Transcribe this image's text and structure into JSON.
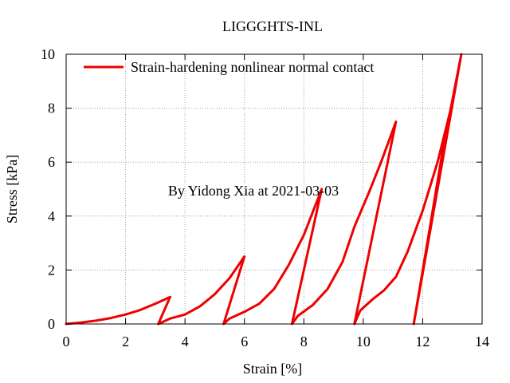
{
  "chart_data": {
    "type": "line",
    "title": "LIGGGHTS-INL",
    "xlabel": "Strain [%]",
    "ylabel": "Stress [kPa]",
    "xlim": [
      0,
      14
    ],
    "ylim": [
      0,
      10
    ],
    "xticks": [
      0,
      2,
      4,
      6,
      8,
      10,
      12,
      14
    ],
    "yticks": [
      0,
      2,
      4,
      6,
      8,
      10
    ],
    "grid": true,
    "legend_position": "top-left",
    "watermark": "By Yidong Xia at 2021-03-03",
    "colors": {
      "series": "#ee0000",
      "watermark": "#c8c8c8",
      "grid": "#a0a0a0"
    },
    "series": [
      {
        "name": "Strain-hardening nonlinear normal contact",
        "x": [
          0,
          0.5,
          1.0,
          1.5,
          2.0,
          2.5,
          3.0,
          3.5,
          3.1,
          3.5,
          4.0,
          4.5,
          5.0,
          5.5,
          6.0,
          5.3,
          5.5,
          6.0,
          6.5,
          7.0,
          7.5,
          8.0,
          8.6,
          7.6,
          7.8,
          8.3,
          8.8,
          9.3,
          9.7,
          10.2,
          10.6,
          11.1,
          9.7,
          9.9,
          10.3,
          10.7,
          11.1,
          11.5,
          12.0,
          12.5,
          13.0,
          13.3,
          11.7,
          12.2,
          12.7,
          13.3
        ],
        "y": [
          0,
          0.05,
          0.12,
          0.22,
          0.35,
          0.52,
          0.75,
          1.0,
          0,
          0.2,
          0.35,
          0.65,
          1.1,
          1.7,
          2.5,
          0,
          0.2,
          0.45,
          0.75,
          1.3,
          2.2,
          3.3,
          5.0,
          0,
          0.3,
          0.7,
          1.3,
          2.3,
          3.6,
          4.9,
          6.0,
          7.5,
          0,
          0.5,
          0.9,
          1.25,
          1.75,
          2.7,
          4.2,
          6.0,
          8.2,
          10.0,
          0,
          3.3,
          6.6,
          10.0
        ]
      }
    ]
  }
}
